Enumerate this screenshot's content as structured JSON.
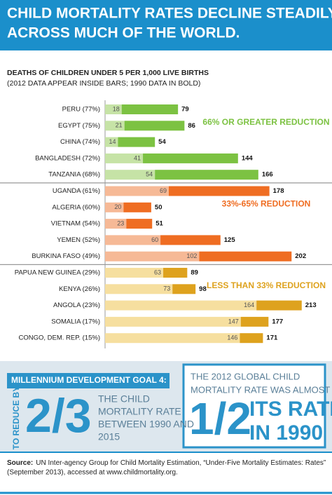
{
  "chart_data": {
    "type": "bar",
    "title": [
      "CHILD MORTALITY RATES DECLINE STEADILY",
      "ACROSS MUCH OF THE WORLD."
    ],
    "subtitle": [
      "DEATHS OF CHILDREN UNDER 5 PER 1,000 LIVE BIRTHS",
      "(2012 DATA APPEAR INSIDE BARS; 1990 DATA IN BOLD)"
    ],
    "xlim": [
      0,
      220
    ],
    "groups": [
      {
        "label": "66% OR GREATER REDUCTION",
        "categories": [
          "PERU (77%)",
          "EGYPT (75%)",
          "CHINA (74%)",
          "BANGLADESH (72%)",
          "TANZANIA (68%)"
        ],
        "series": [
          {
            "color": "#c6e3a6",
            "values": [
              18,
              21,
              14,
              41,
              54
            ]
          },
          {
            "color": "#7cc242",
            "values": [
              79,
              86,
              54,
              144,
              166
            ]
          }
        ]
      },
      {
        "label": "33%-65% REDUCTION",
        "categories": [
          "UGANDA (61%)",
          "ALGERIA (60%)",
          "VIETNAM (54%)",
          "YEMEN (52%)",
          "BURKINA FASO (49%)"
        ],
        "series": [
          {
            "color": "#f6b996",
            "values": [
              69,
              20,
              23,
              60,
              102
            ]
          },
          {
            "color": "#ef6d22",
            "values": [
              178,
              50,
              51,
              125,
              202
            ]
          }
        ]
      },
      {
        "label": "LESS THAN 33% REDUCTION",
        "categories": [
          "PAPUA NEW GUINEA (29%)",
          "KENYA (26%)",
          "ANGOLA (23%)",
          "SOMALIA (17%)",
          "CONGO, DEM. REP. (15%)"
        ],
        "series": [
          {
            "color": "#f6df9f",
            "values": [
              63,
              73,
              164,
              147,
              146
            ]
          },
          {
            "color": "#dea21e",
            "values": [
              89,
              98,
              213,
              177,
              171
            ]
          }
        ]
      }
    ]
  },
  "panel": {
    "goal": "MILLENNIUM DEVELOPMENT GOAL 4:",
    "rotated": "TO REDUCE BY",
    "big_left": "2/3",
    "left_text": [
      "THE CHILD",
      "MORTALITY RATE",
      "BETWEEN 1990 AND",
      "2015"
    ],
    "right_text": [
      "THE 2012 GLOBAL CHILD",
      "MORTALITY RATE WAS ALMOST"
    ],
    "big_right": "1/2",
    "right_big_text": [
      "ITS RATE",
      "IN 1990"
    ]
  },
  "source": {
    "label": "Source:",
    "lines": [
      "UN Inter-agency Group for Child Mortality Estimation, “Under-Five Mortality Estimates: Rates”",
      "(September 2013), accessed at www.childmortality.org."
    ]
  }
}
